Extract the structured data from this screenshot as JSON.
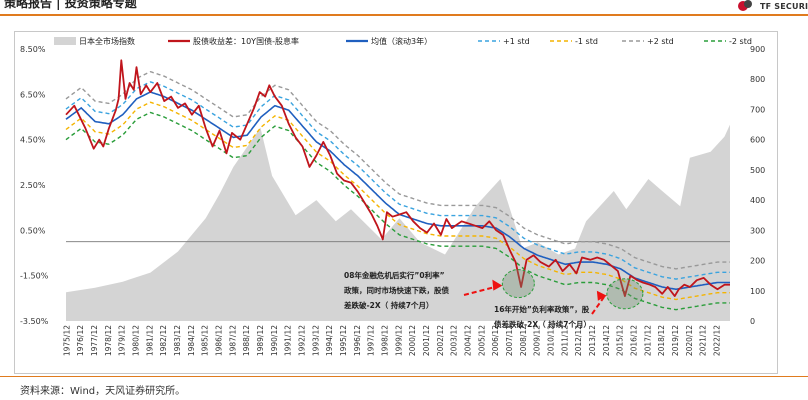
{
  "header": {
    "title": "策略报告 | 投资策略专题",
    "brand": "TF SECURITIES",
    "accent": "#e07b1e",
    "brand_red": "#c8102e"
  },
  "source": "资料来源：Wind，天风证券研究所。",
  "chart_data": {
    "type": "line",
    "legend": [
      {
        "label": "日本全市场指数",
        "kind": "area",
        "color": "#d4d4d4"
      },
      {
        "label": "股债收益差：10Y国债-股息率",
        "kind": "line",
        "color": "#c0151c"
      },
      {
        "label": "均值（滚动3年）",
        "kind": "line",
        "color": "#1f5fbf"
      },
      {
        "label": "+1 std",
        "kind": "dash",
        "color": "#3aa3df"
      },
      {
        "label": "-1 std",
        "kind": "dash",
        "color": "#f4b400"
      },
      {
        "label": "+2 std",
        "kind": "dash",
        "color": "#999999"
      },
      {
        "label": "-2 std",
        "kind": "dash",
        "color": "#2a9d3a"
      }
    ],
    "legend_position": "top",
    "y_left": {
      "min": -3.5,
      "max": 8.5,
      "ticks": [
        "8.50%",
        "6.50%",
        "4.50%",
        "2.50%",
        "0.50%",
        "-1.50%",
        "-3.50%"
      ]
    },
    "y_right": {
      "min": 0,
      "max": 900,
      "ticks": [
        "900",
        "800",
        "700",
        "600",
        "500",
        "400",
        "300",
        "200",
        "100",
        "0"
      ]
    },
    "x_ticks": [
      "1975/12",
      "1976/12",
      "1977/12",
      "1978/12",
      "1979/12",
      "1980/12",
      "1981/12",
      "1982/12",
      "1983/12",
      "1984/12",
      "1985/12",
      "1986/12",
      "1987/12",
      "1988/12",
      "1989/12",
      "1990/12",
      "1991/12",
      "1992/12",
      "1993/12",
      "1994/12",
      "1995/12",
      "1996/12",
      "1997/12",
      "1998/12",
      "1999/12",
      "2000/12",
      "2001/12",
      "2002/12",
      "2003/12",
      "2004/12",
      "2005/12",
      "2006/12",
      "2007/12",
      "2008/12",
      "2009/12",
      "2010/12",
      "2011/12",
      "2012/12",
      "2013/12",
      "2014/12",
      "2015/12",
      "2016/12",
      "2017/12",
      "2018/12",
      "2019/12",
      "2020/12",
      "2021/12",
      "2022/12"
    ],
    "x_range": [
      1975.9,
      2023.9
    ],
    "zero_line": 0,
    "index_series": [
      [
        1975.9,
        95
      ],
      [
        1978,
        110
      ],
      [
        1980,
        130
      ],
      [
        1982,
        160
      ],
      [
        1984,
        230
      ],
      [
        1986,
        340
      ],
      [
        1987,
        420
      ],
      [
        1988,
        510
      ],
      [
        1989.95,
        640
      ],
      [
        1990.8,
        480
      ],
      [
        1992.5,
        350
      ],
      [
        1994,
        400
      ],
      [
        1995.4,
        330
      ],
      [
        1996.5,
        370
      ],
      [
        1998.7,
        270
      ],
      [
        2000,
        340
      ],
      [
        2001.5,
        260
      ],
      [
        2003.3,
        220
      ],
      [
        2005.5,
        380
      ],
      [
        2007.3,
        470
      ],
      [
        2008.9,
        240
      ],
      [
        2010,
        260
      ],
      [
        2011.5,
        220
      ],
      [
        2012.7,
        240
      ],
      [
        2013.5,
        330
      ],
      [
        2015.5,
        430
      ],
      [
        2016.4,
        370
      ],
      [
        2018,
        470
      ],
      [
        2019,
        430
      ],
      [
        2020.3,
        380
      ],
      [
        2021,
        540
      ],
      [
        2022.5,
        560
      ],
      [
        2023.5,
        610
      ],
      [
        2023.9,
        650
      ]
    ],
    "spread_series": [
      [
        1975.9,
        5.6
      ],
      [
        1976.5,
        6.0
      ],
      [
        1977.3,
        5.0
      ],
      [
        1977.9,
        4.1
      ],
      [
        1978.3,
        4.5
      ],
      [
        1978.6,
        4.2
      ],
      [
        1979,
        5.0
      ],
      [
        1979.5,
        5.8
      ],
      [
        1979.7,
        6.3
      ],
      [
        1979.9,
        8.0
      ],
      [
        1980.2,
        6.3
      ],
      [
        1980.5,
        7.0
      ],
      [
        1980.8,
        6.7
      ],
      [
        1981,
        7.7
      ],
      [
        1981.3,
        6.5
      ],
      [
        1981.7,
        6.9
      ],
      [
        1982,
        6.6
      ],
      [
        1982.5,
        7.0
      ],
      [
        1983,
        6.2
      ],
      [
        1983.5,
        6.4
      ],
      [
        1984,
        5.9
      ],
      [
        1984.5,
        6.1
      ],
      [
        1985,
        5.6
      ],
      [
        1985.5,
        6.0
      ],
      [
        1986,
        5.0
      ],
      [
        1986.5,
        4.2
      ],
      [
        1987,
        4.9
      ],
      [
        1987.5,
        3.9
      ],
      [
        1987.9,
        4.8
      ],
      [
        1988.5,
        4.5
      ],
      [
        1989,
        5.2
      ],
      [
        1989.5,
        5.9
      ],
      [
        1989.9,
        6.6
      ],
      [
        1990.3,
        6.4
      ],
      [
        1990.6,
        6.9
      ],
      [
        1991,
        6.4
      ],
      [
        1991.5,
        6.0
      ],
      [
        1992,
        5.2
      ],
      [
        1992.5,
        4.6
      ],
      [
        1993,
        4.2
      ],
      [
        1993.5,
        3.3
      ],
      [
        1994,
        3.8
      ],
      [
        1994.5,
        4.4
      ],
      [
        1995,
        3.8
      ],
      [
        1995.5,
        3.0
      ],
      [
        1996,
        2.7
      ],
      [
        1996.5,
        2.6
      ],
      [
        1997,
        2.2
      ],
      [
        1997.5,
        1.7
      ],
      [
        1998,
        1.2
      ],
      [
        1998.4,
        0.7
      ],
      [
        1998.8,
        0.1
      ],
      [
        1999.1,
        1.3
      ],
      [
        1999.5,
        1.1
      ],
      [
        2000,
        1.2
      ],
      [
        2000.5,
        1.3
      ],
      [
        2001,
        0.9
      ],
      [
        2001.5,
        0.6
      ],
      [
        2002,
        0.4
      ],
      [
        2002.5,
        0.8
      ],
      [
        2003,
        0.3
      ],
      [
        2003.4,
        1.0
      ],
      [
        2003.8,
        0.6
      ],
      [
        2004.5,
        0.9
      ],
      [
        2005,
        0.8
      ],
      [
        2005.5,
        0.7
      ],
      [
        2006,
        0.6
      ],
      [
        2006.5,
        0.9
      ],
      [
        2007,
        0.5
      ],
      [
        2007.5,
        0.3
      ],
      [
        2008,
        -0.4
      ],
      [
        2008.4,
        -0.9
      ],
      [
        2008.8,
        -2.0
      ],
      [
        2009.2,
        -0.8
      ],
      [
        2009.7,
        -0.6
      ],
      [
        2010.2,
        -0.9
      ],
      [
        2010.8,
        -1.1
      ],
      [
        2011.3,
        -0.8
      ],
      [
        2011.8,
        -1.3
      ],
      [
        2012.3,
        -1.0
      ],
      [
        2012.8,
        -1.4
      ],
      [
        2013.2,
        -0.7
      ],
      [
        2013.8,
        -0.8
      ],
      [
        2014.3,
        -0.7
      ],
      [
        2014.8,
        -0.8
      ],
      [
        2015.4,
        -1.1
      ],
      [
        2015.8,
        -1.3
      ],
      [
        2016.3,
        -2.4
      ],
      [
        2016.7,
        -1.5
      ],
      [
        2017.2,
        -1.7
      ],
      [
        2017.6,
        -1.8
      ],
      [
        2018.1,
        -1.9
      ],
      [
        2018.5,
        -2.0
      ],
      [
        2019,
        -2.3
      ],
      [
        2019.4,
        -2.0
      ],
      [
        2019.9,
        -2.4
      ],
      [
        2020.2,
        -2.1
      ],
      [
        2020.6,
        -1.9
      ],
      [
        2021,
        -2.0
      ],
      [
        2021.5,
        -1.7
      ],
      [
        2022,
        -1.6
      ],
      [
        2022.5,
        -1.9
      ],
      [
        2023,
        -2.1
      ],
      [
        2023.5,
        -1.9
      ],
      [
        2023.9,
        -1.9
      ]
    ],
    "mean_series": [
      [
        1975.9,
        5.4
      ],
      [
        1977,
        5.9
      ],
      [
        1978,
        5.3
      ],
      [
        1979,
        5.2
      ],
      [
        1980,
        5.6
      ],
      [
        1981,
        6.3
      ],
      [
        1982,
        6.6
      ],
      [
        1983,
        6.4
      ],
      [
        1984,
        6.1
      ],
      [
        1985,
        5.8
      ],
      [
        1986,
        5.4
      ],
      [
        1987,
        5.0
      ],
      [
        1988,
        4.6
      ],
      [
        1989,
        4.7
      ],
      [
        1990,
        5.5
      ],
      [
        1991,
        6.0
      ],
      [
        1992,
        5.8
      ],
      [
        1993,
        5.1
      ],
      [
        1994,
        4.4
      ],
      [
        1995,
        4.0
      ],
      [
        1996,
        3.4
      ],
      [
        1997,
        2.9
      ],
      [
        1998,
        2.3
      ],
      [
        1999,
        1.7
      ],
      [
        2000,
        1.2
      ],
      [
        2001,
        1.0
      ],
      [
        2002,
        0.8
      ],
      [
        2003,
        0.7
      ],
      [
        2004,
        0.7
      ],
      [
        2005,
        0.7
      ],
      [
        2006,
        0.7
      ],
      [
        2007,
        0.6
      ],
      [
        2008,
        0.2
      ],
      [
        2009,
        -0.3
      ],
      [
        2010,
        -0.6
      ],
      [
        2011,
        -0.8
      ],
      [
        2012,
        -1.0
      ],
      [
        2013,
        -0.9
      ],
      [
        2014,
        -0.9
      ],
      [
        2015,
        -1.0
      ],
      [
        2016,
        -1.2
      ],
      [
        2017,
        -1.6
      ],
      [
        2018,
        -1.8
      ],
      [
        2019,
        -2.0
      ],
      [
        2020,
        -2.1
      ],
      [
        2021,
        -2.0
      ],
      [
        2022,
        -1.9
      ],
      [
        2023,
        -1.8
      ],
      [
        2023.9,
        -1.8
      ]
    ],
    "std_offsets": {
      "plus1": 0.45,
      "minus1": -0.45,
      "plus2": 0.9,
      "minus2": -0.9
    },
    "annotations": [
      {
        "lines": [
          "08年金融危机后实行”0利率”",
          "政策，同时市场快速下跌，股债",
          "差跌破-2X（ 持续7个月）"
        ],
        "x": 2008.6,
        "y": -1.85
      },
      {
        "lines": [
          "16年开始”负利率政策”，股",
          "债差跌破-2X（ 持续7个月）"
        ],
        "x": 2016.3,
        "y": -2.3
      }
    ]
  }
}
